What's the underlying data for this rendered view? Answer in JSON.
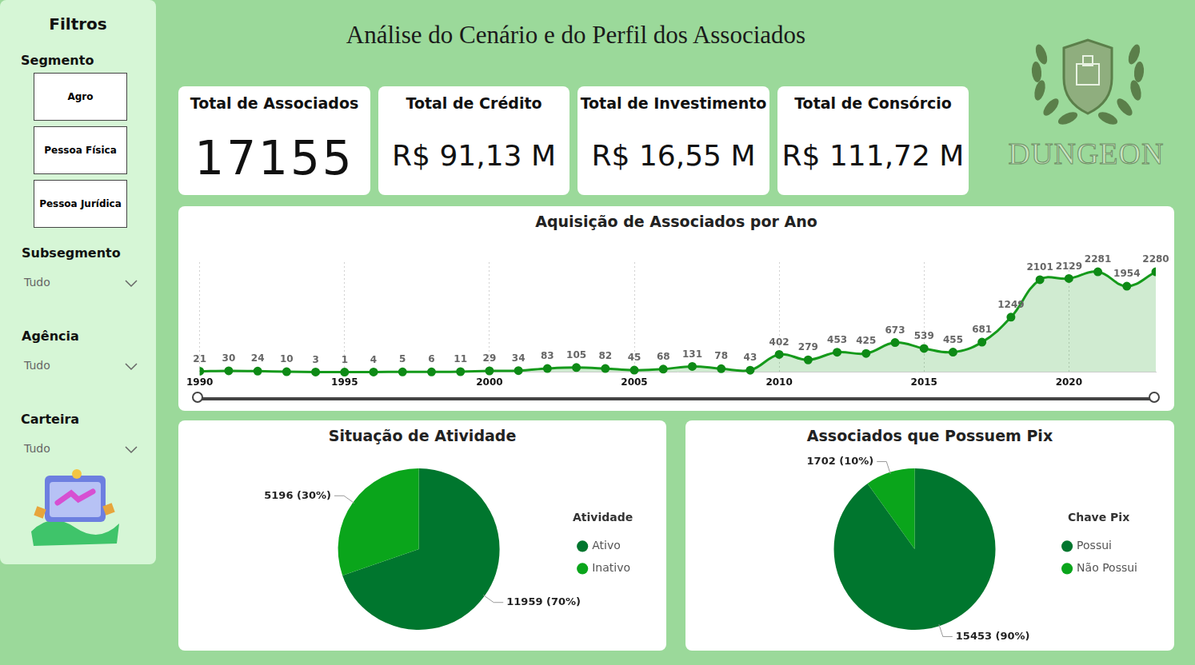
{
  "header": {
    "title": "Análise do Cenário e do Perfil dos Associados",
    "logo_text": "DUNGEON"
  },
  "filters": {
    "title": "Filtros",
    "segment": {
      "label": "Segmento",
      "options": [
        "Agro",
        "Pessoa Física",
        "Pessoa Jurídica"
      ]
    },
    "dropdowns": [
      {
        "label": "Subsegmento",
        "value": "Tudo"
      },
      {
        "label": "Agência",
        "value": "Tudo"
      },
      {
        "label": "Carteira",
        "value": "Tudo"
      }
    ]
  },
  "cards": [
    {
      "title": "Total de Associados",
      "value": "17155"
    },
    {
      "title": "Total de Crédito",
      "value": "R$ 91,13 M"
    },
    {
      "title": "Total de Investimento",
      "value": "R$ 16,55 M"
    },
    {
      "title": "Total de Consórcio",
      "value": "R$ 111,72 M"
    }
  ],
  "chart_data": [
    {
      "type": "line",
      "title": "Aquisição de Associados por Ano",
      "x": [
        1990,
        1991,
        1992,
        1993,
        1994,
        1995,
        1996,
        1997,
        1998,
        1999,
        2000,
        2001,
        2002,
        2003,
        2004,
        2005,
        2006,
        2007,
        2008,
        2009,
        2010,
        2011,
        2012,
        2013,
        2014,
        2015,
        2016,
        2017,
        2018,
        2019,
        2020,
        2021,
        2022,
        2023
      ],
      "values": [
        21,
        30,
        24,
        10,
        3,
        1,
        4,
        5,
        6,
        11,
        29,
        34,
        83,
        105,
        82,
        45,
        68,
        131,
        78,
        43,
        402,
        279,
        453,
        425,
        673,
        539,
        455,
        681,
        1249,
        2101,
        2129,
        2281,
        1954,
        2280
      ],
      "color": "#159a1b",
      "xlim": [
        1990,
        2023
      ],
      "xticks": [
        1990,
        1995,
        2000,
        2005,
        2010,
        2015,
        2020
      ],
      "grid": true,
      "data_labels": true,
      "tick_labels": "x",
      "marker": "circle"
    },
    {
      "type": "pie",
      "title": "Situação de Atividade",
      "legend_title": "Atividade",
      "categories": [
        "Ativo",
        "Inativo"
      ],
      "values": [
        11959,
        5196
      ],
      "value_labels": [
        "11959 (70%)",
        "5196 (30%)"
      ],
      "colors": [
        "#00762e",
        "#0aa51b"
      ],
      "data_labels": true,
      "legend": "right"
    },
    {
      "type": "pie",
      "title": "Associados que Possuem Pix",
      "legend_title": "Chave Pix",
      "categories": [
        "Possui",
        "Não Possui"
      ],
      "values": [
        15453,
        1702
      ],
      "value_labels": [
        "15453 (90%)",
        "1702 (10%)"
      ],
      "colors": [
        "#00762e",
        "#0aa51b"
      ],
      "data_labels": true,
      "legend": "right"
    }
  ]
}
